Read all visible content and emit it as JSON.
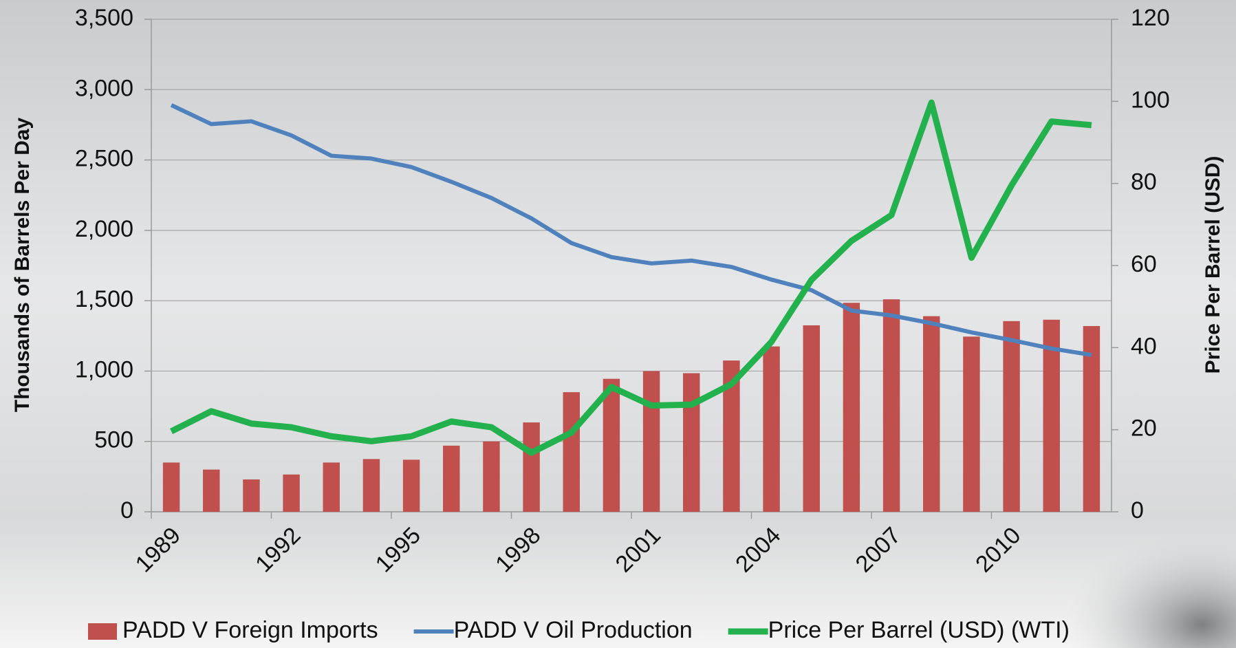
{
  "chart_data": {
    "type": "bar_line",
    "categories": [
      "1989",
      null,
      null,
      "1992",
      null,
      null,
      "1995",
      null,
      null,
      "1998",
      null,
      null,
      "2001",
      null,
      null,
      "2004",
      null,
      null,
      "2007",
      null,
      null,
      "2010",
      null,
      null
    ],
    "y_label": "Thousands of Barrels Per Day",
    "y2_label": "Price Per Barrel (USD)",
    "ylim": [
      0,
      3500
    ],
    "yticks": [
      0,
      {
        "value": 500,
        "label": "500"
      },
      {
        "value": 1000,
        "label": "1,000"
      },
      {
        "value": 1500,
        "label": "1,500"
      },
      {
        "value": 2000,
        "label": "2,000"
      },
      {
        "value": 2500,
        "label": "2,500"
      },
      {
        "value": 3000,
        "label": "3,000"
      },
      {
        "value": 3500,
        "label": "3,500"
      }
    ],
    "y2lim": [
      0,
      120
    ],
    "y2ticks": [
      0,
      20,
      40,
      60,
      80,
      100,
      120
    ],
    "grid": true,
    "legend": "bottom",
    "series": [
      {
        "name": "PADD V Foreign Imports",
        "type": "bar",
        "color": "#c0504d",
        "values": [
          350,
          300,
          230,
          265,
          350,
          375,
          370,
          470,
          500,
          635,
          850,
          945,
          1000,
          985,
          1075,
          1175,
          1325,
          1485,
          1510,
          1390,
          1245,
          1355,
          1365,
          1320
        ]
      },
      {
        "name": "PADD V Oil Production",
        "type": "line",
        "color": "#4f81bd",
        "values": [
          2890,
          2755,
          2775,
          2675,
          2530,
          2510,
          2450,
          2345,
          2230,
          2085,
          1910,
          1810,
          1765,
          1785,
          1740,
          1650,
          1575,
          1430,
          1395,
          1340,
          1275,
          1220,
          1160,
          1115
        ]
      },
      {
        "name": "Price Per Barrel (USD) (WTI)",
        "type": "line",
        "color": "#22b14c",
        "axis": "y2",
        "values": [
          19.6,
          24.5,
          21.5,
          20.6,
          18.4,
          17.2,
          18.4,
          22.0,
          20.6,
          14.4,
          19.3,
          30.4,
          25.9,
          26.1,
          31.1,
          41.4,
          56.5,
          66.0,
          72.3,
          99.7,
          61.9,
          79.5,
          95.1,
          94.2
        ]
      }
    ]
  }
}
